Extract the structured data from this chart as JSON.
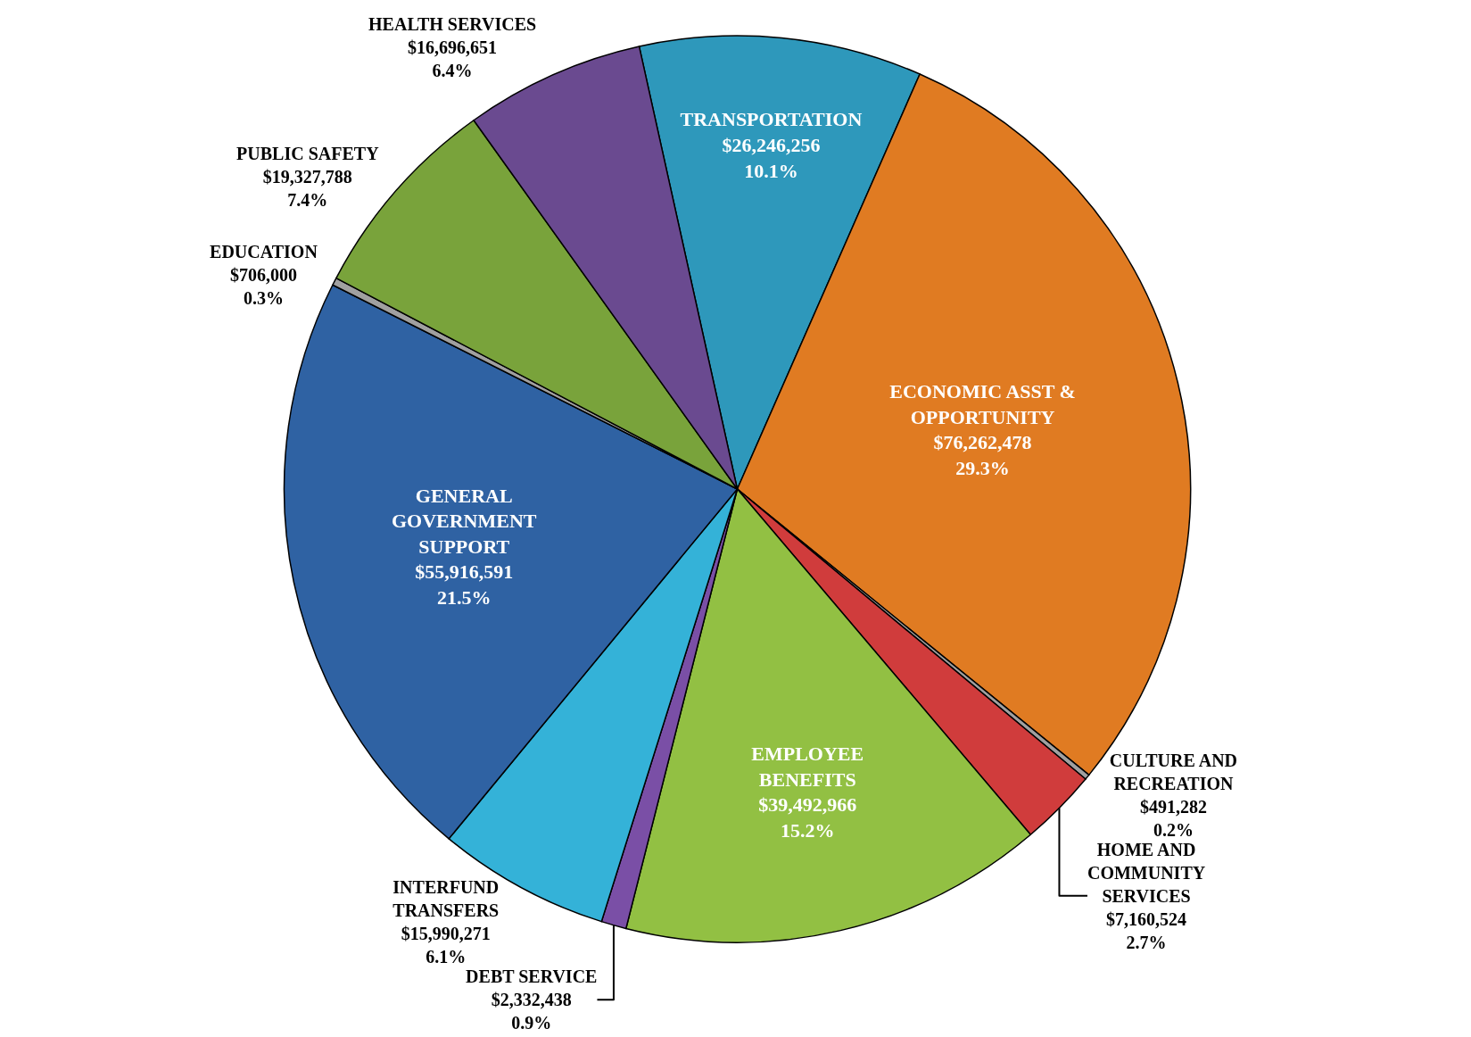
{
  "chart_data": {
    "type": "pie",
    "categories": [
      "TRANSPORTATION",
      "ECONOMIC ASST & OPPORTUNITY",
      "CULTURE AND RECREATION",
      "HOME AND COMMUNITY SERVICES",
      "EMPLOYEE BENEFITS",
      "DEBT SERVICE",
      "INTERFUND TRANSFERS",
      "GENERAL GOVERNMENT SUPPORT",
      "EDUCATION",
      "PUBLIC SAFETY",
      "HEALTH SERVICES"
    ],
    "values": [
      26246256,
      76262478,
      491282,
      7160524,
      39492966,
      2332438,
      15990271,
      55916591,
      706000,
      19327788,
      16696651
    ],
    "value_labels": [
      "$26,246,256\n10.1%",
      "$76,262,478\n29.3%",
      "$491,282\n0.2%",
      "$7,160,524\n2.7%",
      "$39,492,966\n15.2%",
      "$2,332,438\n0.9%",
      "$15,990,271\n6.1%",
      "$55,916,591\n21.5%",
      "$706,000\n0.3%",
      "$19,327,788\n7.4%",
      "$16,696,651\n6.4%"
    ],
    "colors": [
      "#2e98bb",
      "#e07b22",
      "#a0a0a0",
      "#d03c3c",
      "#92c043",
      "#7a4fa6",
      "#34b2d8",
      "#2f62a3",
      "#a0a0a0",
      "#79a33b",
      "#6a4a90"
    ]
  }
}
